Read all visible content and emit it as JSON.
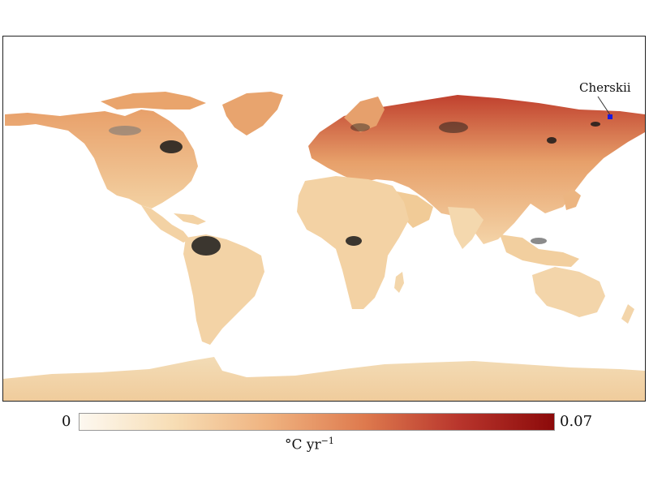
{
  "map": {
    "highlight_label": "Cherskii",
    "marker_color": "#1a1adc",
    "land_shading": "temperature warming rate (°C per year)",
    "no_data_shading": "black/gray patches"
  },
  "colorbar": {
    "min_label": "0",
    "max_label": "0.07",
    "unit_base": "°C yr",
    "unit_exponent": "−1",
    "colors": [
      "#fdf8f0",
      "#f7ddb4",
      "#efb27f",
      "#de7a4e",
      "#b8352c",
      "#8c0a0a"
    ]
  }
}
